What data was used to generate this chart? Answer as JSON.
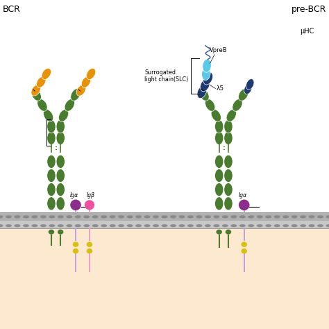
{
  "title_left": "BCR",
  "title_right": "pre-BCR",
  "label_mu": "μHC",
  "label_vpreB": "VpreB",
  "label_lambda5": "λ5",
  "label_slc": "Surrogated\nlight chain(SLC)",
  "label_iga": "Igα",
  "label_igb": "Igβ",
  "colors": {
    "green": "#4a7c2f",
    "orange": "#e8920a",
    "light_blue": "#5bc8e8",
    "dark_blue": "#1e3a6e",
    "purple": "#8b2d8b",
    "pink": "#f050a0",
    "lavender": "#c0a0e0",
    "pink_light": "#f0a0c8",
    "yellow": "#d8c010",
    "background": "#ffffff",
    "cytoplasm": "#fde8d0",
    "black": "#000000",
    "white": "#ffffff",
    "membrane_gray": "#909090"
  },
  "fig_width": 4.74,
  "fig_height": 4.74,
  "dpi": 100
}
